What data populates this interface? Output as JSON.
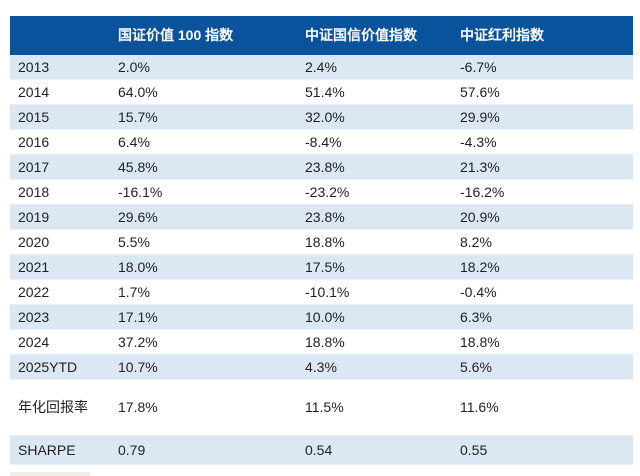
{
  "chart_data": {
    "type": "table",
    "title": "",
    "columns": [
      "",
      "国证价值 100 指数",
      "中证国信价值指数",
      "中证红利指数"
    ],
    "rows": [
      {
        "label": "2013",
        "kind": "year",
        "values": [
          "2.0%",
          "2.4%",
          "-6.7%"
        ]
      },
      {
        "label": "2014",
        "kind": "year",
        "values": [
          "64.0%",
          "51.4%",
          "57.6%"
        ]
      },
      {
        "label": "2015",
        "kind": "year",
        "values": [
          "15.7%",
          "32.0%",
          "29.9%"
        ]
      },
      {
        "label": "2016",
        "kind": "year",
        "values": [
          "6.4%",
          "-8.4%",
          "-4.3%"
        ]
      },
      {
        "label": "2017",
        "kind": "year",
        "values": [
          "45.8%",
          "23.8%",
          "21.3%"
        ]
      },
      {
        "label": "2018",
        "kind": "year",
        "values": [
          "-16.1%",
          "-23.2%",
          "-16.2%"
        ]
      },
      {
        "label": "2019",
        "kind": "year",
        "values": [
          "29.6%",
          "23.8%",
          "20.9%"
        ]
      },
      {
        "label": "2020",
        "kind": "year",
        "values": [
          "5.5%",
          "18.8%",
          "8.2%"
        ]
      },
      {
        "label": "2021",
        "kind": "year",
        "values": [
          "18.0%",
          "17.5%",
          "18.2%"
        ]
      },
      {
        "label": "2022",
        "kind": "year",
        "values": [
          "1.7%",
          "-10.1%",
          "-0.4%"
        ]
      },
      {
        "label": "2023",
        "kind": "year",
        "values": [
          "17.1%",
          "10.0%",
          "6.3%"
        ]
      },
      {
        "label": "2024",
        "kind": "year",
        "values": [
          "37.2%",
          "18.8%",
          "18.8%"
        ]
      },
      {
        "label": "2025YTD",
        "kind": "year",
        "values": [
          "10.7%",
          "4.3%",
          "5.6%"
        ]
      },
      {
        "label": "年化回报率",
        "kind": "summary",
        "values": [
          "17.8%",
          "11.5%",
          "11.6%"
        ]
      },
      {
        "label": "SHARPE",
        "kind": "sharpe",
        "values": [
          "0.79",
          "0.54",
          "0.55"
        ]
      }
    ]
  },
  "colors": {
    "header_bg": "#09529c",
    "row_tint": "#dbe8f4",
    "text": "#1f1f1f",
    "header_text": "#ffffff"
  }
}
